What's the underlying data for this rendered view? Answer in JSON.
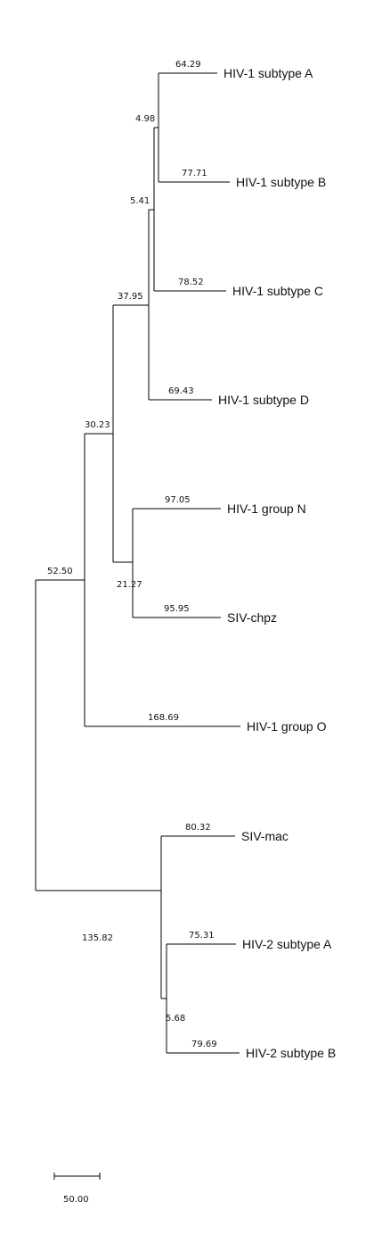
{
  "tree": {
    "taxa": [
      {
        "id": "hiv1_a",
        "label": "HIV-1 subtype A",
        "branch_length": "64.29"
      },
      {
        "id": "hiv1_b",
        "label": "HIV-1 subtype B",
        "branch_length": "77.71"
      },
      {
        "id": "hiv1_c",
        "label": "HIV-1 subtype C",
        "branch_length": "78.52"
      },
      {
        "id": "hiv1_d",
        "label": "HIV-1 subtype D",
        "branch_length": "69.43"
      },
      {
        "id": "hiv1_n",
        "label": "HIV-1 group N",
        "branch_length": "97.05"
      },
      {
        "id": "siv_chpz",
        "label": "SIV-chpz",
        "branch_length": "95.95"
      },
      {
        "id": "hiv1_o",
        "label": "HIV-1 group O",
        "branch_length": "168.69"
      },
      {
        "id": "siv_mac",
        "label": "SIV-mac",
        "branch_length": "80.32"
      },
      {
        "id": "hiv2_a",
        "label": "HIV-2 subtype A",
        "branch_length": "75.31"
      },
      {
        "id": "hiv2_b",
        "label": "HIV-2 subtype B",
        "branch_length": "79.69"
      }
    ],
    "internal_branches": [
      {
        "id": "ab",
        "label": "4.98"
      },
      {
        "id": "abc",
        "label": "5.41"
      },
      {
        "id": "abcd",
        "label": "37.95"
      },
      {
        "id": "n_chpz",
        "label": "21.27"
      },
      {
        "id": "hiv1_main",
        "label": "30.23"
      },
      {
        "id": "hiv1_all",
        "label": "52.50"
      },
      {
        "id": "hiv2_siv",
        "label": "135.82"
      },
      {
        "id": "hiv2",
        "label": "5.68"
      }
    ],
    "scale_bar": {
      "label": "50.00"
    }
  }
}
